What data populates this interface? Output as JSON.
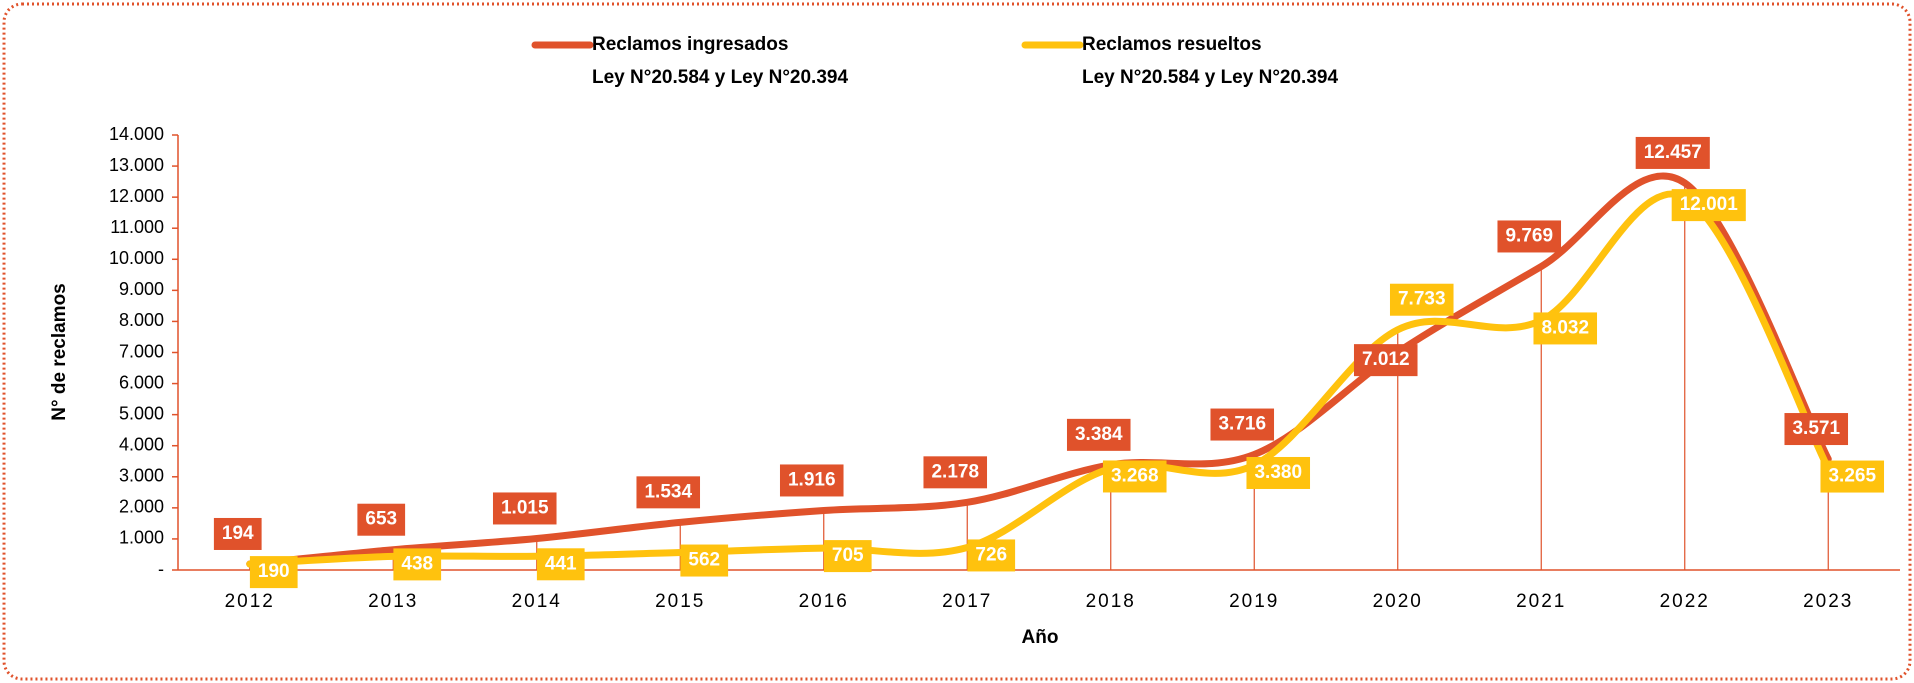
{
  "chart_data": {
    "type": "line",
    "x_label": "Año",
    "y_label": "N° de reclamos",
    "categories": [
      "2012",
      "2013",
      "2014",
      "2015",
      "2016",
      "2017",
      "2018",
      "2019",
      "2020",
      "2021",
      "2022",
      "2023"
    ],
    "series": [
      {
        "name": "Reclamos ingresados\nLey N°20.584 y Ley N°20.394",
        "color": "#e0522b",
        "values": [
          194,
          653,
          1015,
          1534,
          1916,
          2178,
          3384,
          3716,
          7012,
          9769,
          12457,
          3571
        ],
        "value_labels": [
          "194",
          "653",
          "1.015",
          "1.534",
          "1.916",
          "2.178",
          "3.384",
          "3.716",
          "7.012",
          "9.769",
          "12.457",
          "3.571"
        ]
      },
      {
        "name": "Reclamos resueltos\nLey N°20.584 y Ley N°20.394",
        "color": "#ffc20e",
        "values": [
          190,
          438,
          441,
          562,
          705,
          726,
          3268,
          3380,
          7733,
          8032,
          12001,
          3265
        ],
        "value_labels": [
          "190",
          "438",
          "441",
          "562",
          "705",
          "726",
          "3.268",
          "3.380",
          "7.733",
          "8.032",
          "12.001",
          "3.265"
        ]
      }
    ],
    "ylim": [
      0,
      14000
    ],
    "yticks": [
      {
        "value": 0,
        "label": "-"
      },
      {
        "value": 1000,
        "label": "1.000"
      },
      {
        "value": 2000,
        "label": "2.000"
      },
      {
        "value": 3000,
        "label": "3.000"
      },
      {
        "value": 4000,
        "label": "4.000"
      },
      {
        "value": 5000,
        "label": "5.000"
      },
      {
        "value": 6000,
        "label": "6.000"
      },
      {
        "value": 7000,
        "label": "7.000"
      },
      {
        "value": 8000,
        "label": "8.000"
      },
      {
        "value": 9000,
        "label": "9.000"
      },
      {
        "value": 10000,
        "label": "10.000"
      },
      {
        "value": 11000,
        "label": "11.000"
      },
      {
        "value": 12000,
        "label": "12.000"
      },
      {
        "value": 13000,
        "label": "13.000"
      },
      {
        "value": 14000,
        "label": "14.000"
      }
    ],
    "smooth": true,
    "legend": "top"
  }
}
